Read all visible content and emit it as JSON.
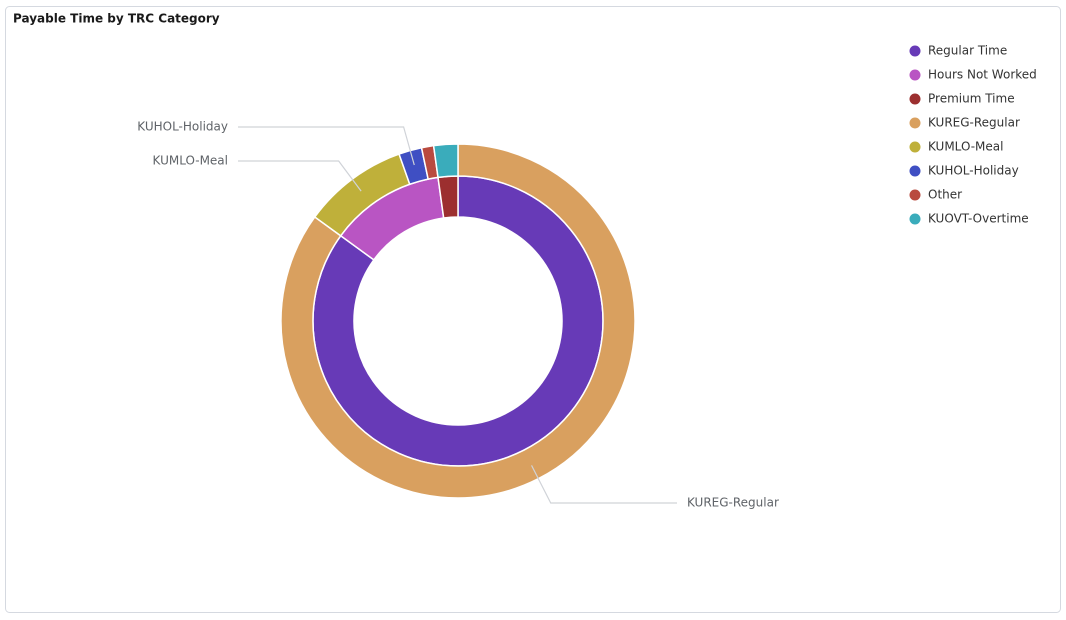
{
  "chart_data": {
    "type": "nested-donut",
    "title": "Payable Time by TRC Category",
    "inner": {
      "categories": [
        "Regular Time",
        "Hours Not Worked",
        "Premium Time"
      ],
      "values": [
        85,
        12.8,
        2.2
      ],
      "colors": [
        "#673ab7",
        "#b955c3",
        "#9c2f2f"
      ]
    },
    "outer": {
      "categories": [
        "KUREG-Regular",
        "KUMLO-Meal",
        "KUHOL-Holiday",
        "Other",
        "KUOVT-Overtime"
      ],
      "values": [
        85,
        9.6,
        2.1,
        1.1,
        2.2
      ],
      "colors": [
        "#d9a05f",
        "#bfb03a",
        "#3f4fc3",
        "#b94a3f",
        "#3aacbb"
      ]
    },
    "legend": "top-right"
  }
}
